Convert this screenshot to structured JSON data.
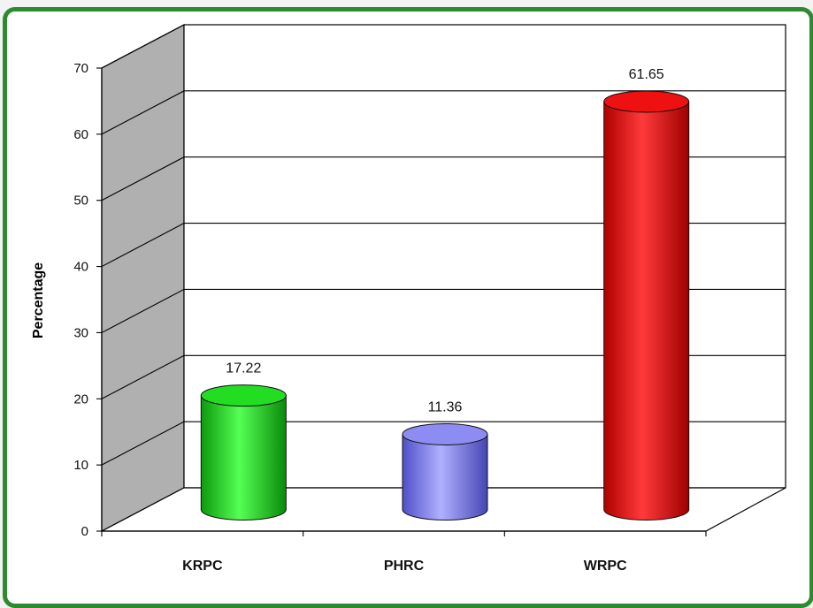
{
  "chart_data": {
    "type": "bar",
    "style": "3d-cylinder",
    "categories": [
      "KRPC",
      "PHRC",
      "WRPC"
    ],
    "values": [
      17.22,
      11.36,
      61.65
    ],
    "value_labels": [
      "17.22",
      "11.36",
      "61.65"
    ],
    "colors": [
      "#22dd22",
      "#8c8cf2",
      "#ee1111"
    ],
    "ylabel": "Percentage",
    "xlabel": "",
    "title": "",
    "ylim": [
      0,
      70
    ],
    "yticks": [
      0,
      10,
      20,
      30,
      40,
      50,
      60,
      70
    ],
    "grid": true,
    "legend": "none",
    "frame_color": "#2f8a2f",
    "side_wall_color": "#b0b0b0"
  }
}
